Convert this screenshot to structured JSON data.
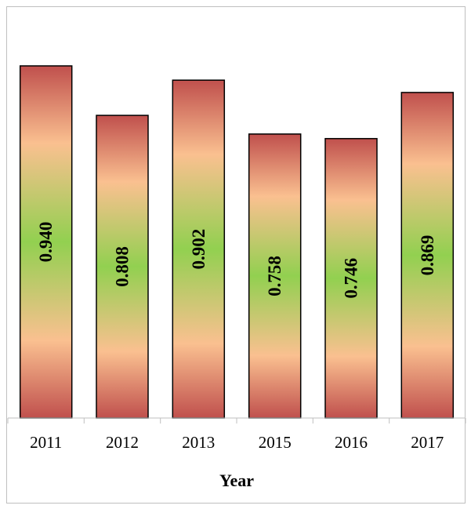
{
  "chart_data": {
    "type": "bar",
    "title": "",
    "xlabel": "Year",
    "ylabel": "",
    "categories": [
      "2011",
      "2012",
      "2013",
      "2015",
      "2016",
      "2017"
    ],
    "values": [
      0.94,
      0.808,
      0.902,
      0.758,
      0.746,
      0.869
    ],
    "value_labels": [
      "0.940",
      "0.808",
      "0.902",
      "0.758",
      "0.746",
      "0.869"
    ],
    "ylim": [
      0,
      1.0
    ],
    "grid": false,
    "legend": "none",
    "bar_gradient": [
      "#c0504d",
      "#fac090",
      "#92d050",
      "#fac090",
      "#c0504d"
    ],
    "bar_outline": "#000000"
  }
}
